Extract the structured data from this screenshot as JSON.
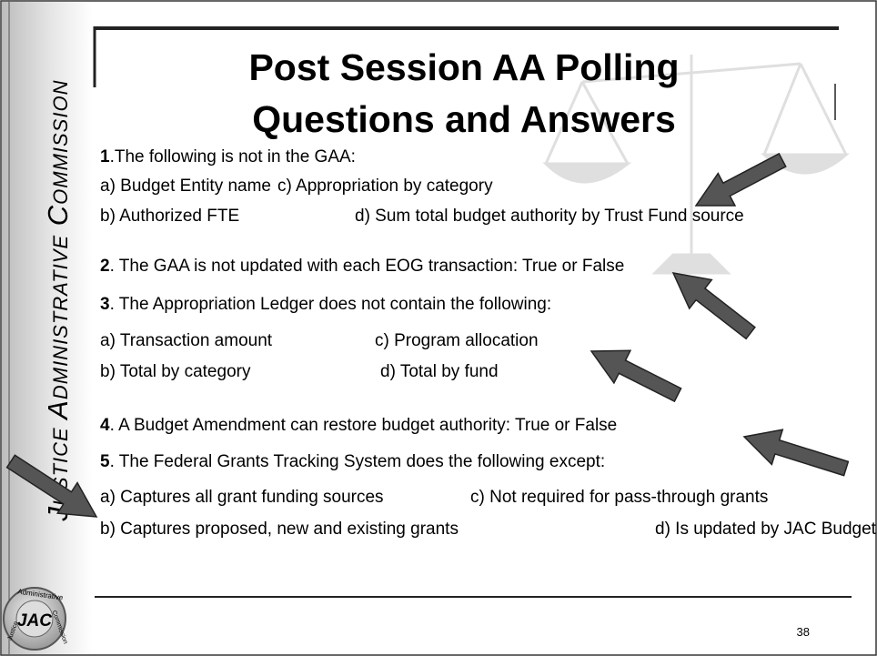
{
  "sidebar": "Justice Administrative Commission",
  "title": [
    "Post Session AA Polling",
    "Questions and Answers"
  ],
  "questions": [
    {
      "number": "1",
      "text": ".The following is not in the GAA:",
      "options": [
        "a) Budget Entity name",
        "c) Appropriation by category",
        "b) Authorized FTE",
        "d) Sum total budget authority by Trust Fund source"
      ]
    },
    {
      "number": "2",
      "text": ". The GAA is not updated with each EOG transaction: True or False",
      "options": []
    },
    {
      "number": "3",
      "text": ". The Appropriation Ledger does not contain the following:",
      "options": [
        "a) Transaction amount",
        "c) Program allocation",
        "b) Total by category",
        "d) Total by fund"
      ]
    },
    {
      "number": "4",
      "text": ". A Budget Amendment can restore budget authority: True or False",
      "options": []
    },
    {
      "number": "5",
      "text": ". The Federal Grants Tracking System does the following except:",
      "options": [
        "a) Captures all grant funding sources",
        "c) Not required for pass-through grants",
        "b) Captures proposed, new and existing grants",
        "d) Is updated by JAC Budget Office"
      ]
    }
  ],
  "page_number": "38",
  "logo": {
    "text": "JAC",
    "ring": [
      "Administrative",
      "Commission",
      "Justice"
    ]
  }
}
